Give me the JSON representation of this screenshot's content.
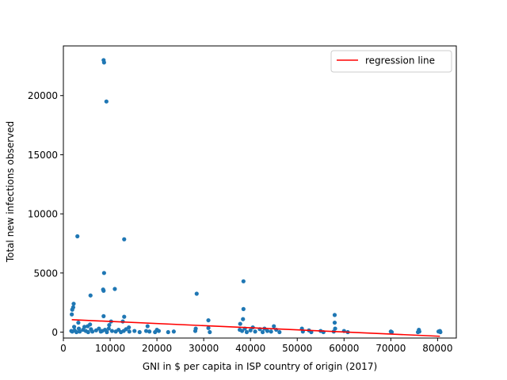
{
  "chart_data": {
    "type": "scatter",
    "xlabel": "GNI in $ per capita in ISP country of origin (2017)",
    "ylabel": "Total new infections observed",
    "xlim": [
      0,
      84000
    ],
    "ylim": [
      -500,
      24200
    ],
    "x_ticks": [
      0,
      10000,
      20000,
      30000,
      40000,
      50000,
      60000,
      70000,
      80000
    ],
    "y_ticks": [
      0,
      5000,
      10000,
      15000,
      20000
    ],
    "x_tick_labels": [
      "0",
      "10000",
      "20000",
      "30000",
      "40000",
      "50000",
      "60000",
      "70000",
      "80000"
    ],
    "y_tick_labels": [
      "0",
      "5000",
      "10000",
      "15000",
      "20000"
    ],
    "grid": false,
    "legend": {
      "position": "upper right",
      "entries": [
        "regression line"
      ]
    },
    "colors": {
      "points": "#1f77b4",
      "regression": "#ff0000"
    },
    "series": [
      {
        "type": "scatter",
        "points": [
          [
            8600,
            23000
          ],
          [
            8700,
            22800
          ],
          [
            9200,
            19500
          ],
          [
            3000,
            8100
          ],
          [
            13000,
            7850
          ],
          [
            8700,
            5000
          ],
          [
            8500,
            3600
          ],
          [
            8600,
            3500
          ],
          [
            11000,
            3650
          ],
          [
            5800,
            3100
          ],
          [
            28500,
            3250
          ],
          [
            38500,
            4300
          ],
          [
            2200,
            2400
          ],
          [
            2100,
            2100
          ],
          [
            1900,
            1900
          ],
          [
            1800,
            1500
          ],
          [
            38500,
            1950
          ],
          [
            58000,
            1450
          ],
          [
            8600,
            1350
          ],
          [
            13000,
            1300
          ],
          [
            31000,
            1000
          ],
          [
            38400,
            1100
          ],
          [
            37800,
            700
          ],
          [
            10200,
            900
          ],
          [
            12700,
            900
          ],
          [
            3200,
            800
          ],
          [
            5700,
            650
          ],
          [
            5200,
            500
          ],
          [
            2300,
            450
          ],
          [
            4500,
            450
          ],
          [
            9800,
            600
          ],
          [
            14000,
            400
          ],
          [
            18000,
            500
          ],
          [
            20000,
            200
          ],
          [
            28300,
            300
          ],
          [
            31000,
            350
          ],
          [
            40500,
            400
          ],
          [
            43000,
            300
          ],
          [
            45000,
            500
          ],
          [
            51000,
            300
          ],
          [
            52500,
            150
          ],
          [
            55000,
            100
          ],
          [
            58000,
            800
          ],
          [
            58100,
            300
          ],
          [
            60000,
            100
          ],
          [
            70000,
            50
          ],
          [
            76000,
            200
          ],
          [
            76100,
            50
          ],
          [
            80500,
            100
          ],
          [
            80600,
            0
          ],
          [
            1700,
            100
          ],
          [
            1900,
            50
          ],
          [
            2400,
            150
          ],
          [
            2800,
            0
          ],
          [
            3300,
            300
          ],
          [
            3500,
            50
          ],
          [
            4200,
            200
          ],
          [
            4800,
            100
          ],
          [
            5300,
            0
          ],
          [
            5900,
            250
          ],
          [
            6200,
            50
          ],
          [
            7000,
            150
          ],
          [
            7600,
            300
          ],
          [
            8000,
            50
          ],
          [
            8300,
            100
          ],
          [
            8900,
            200
          ],
          [
            9300,
            0
          ],
          [
            9700,
            300
          ],
          [
            10400,
            100
          ],
          [
            11200,
            50
          ],
          [
            11800,
            200
          ],
          [
            12300,
            0
          ],
          [
            12900,
            100
          ],
          [
            13400,
            250
          ],
          [
            14100,
            50
          ],
          [
            15200,
            100
          ],
          [
            16300,
            0
          ],
          [
            17700,
            100
          ],
          [
            18400,
            50
          ],
          [
            19600,
            0
          ],
          [
            20400,
            100
          ],
          [
            22400,
            0
          ],
          [
            23600,
            50
          ],
          [
            28200,
            100
          ],
          [
            31300,
            0
          ],
          [
            37700,
            200
          ],
          [
            38200,
            100
          ],
          [
            38800,
            300
          ],
          [
            39200,
            0
          ],
          [
            40000,
            150
          ],
          [
            41000,
            50
          ],
          [
            42000,
            250
          ],
          [
            42600,
            0
          ],
          [
            43600,
            100
          ],
          [
            44400,
            50
          ],
          [
            45500,
            200
          ],
          [
            46200,
            0
          ],
          [
            51200,
            50
          ],
          [
            53000,
            0
          ],
          [
            55600,
            0
          ],
          [
            57800,
            50
          ],
          [
            60800,
            0
          ],
          [
            70200,
            0
          ],
          [
            75800,
            0
          ],
          [
            80200,
            50
          ]
        ]
      },
      {
        "name": "regression line",
        "type": "line",
        "points": [
          [
            1800,
            1050
          ],
          [
            80500,
            -350
          ]
        ]
      }
    ]
  }
}
